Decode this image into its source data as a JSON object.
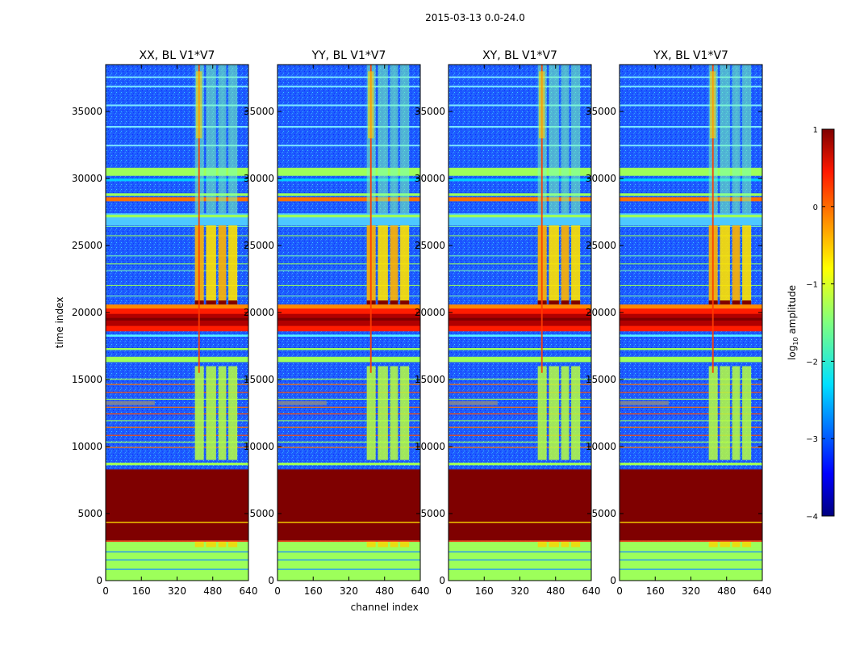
{
  "chart_data": {
    "type": "heatmap",
    "suptitle": "2015-03-13 0.0-24.0",
    "panels": [
      {
        "title": "XX, BL V1*V7",
        "ylabel": "time index"
      },
      {
        "title": "YY, BL V1*V7",
        "xlabel": "channel index"
      },
      {
        "title": "XY, BL V1*V7"
      },
      {
        "title": "YX, BL V1*V7"
      }
    ],
    "xlim": [
      0,
      640
    ],
    "ylim": [
      0,
      38500
    ],
    "xticks": [
      "0",
      "160",
      "320",
      "480",
      "640"
    ],
    "xtick_values": [
      0,
      160,
      320,
      480,
      640
    ],
    "yticks": [
      "0",
      "5000",
      "10000",
      "15000",
      "20000",
      "25000",
      "30000",
      "35000"
    ],
    "ytick_values": [
      0,
      5000,
      10000,
      15000,
      20000,
      25000,
      30000,
      35000
    ],
    "colorbar": {
      "label": "log",
      "label_sub": "10",
      "label_rest": " amplitude",
      "range": [
        -4,
        1
      ],
      "ticks": [
        "1",
        "0",
        "−1",
        "−2",
        "−3",
        "−4"
      ],
      "tick_values": [
        1,
        0,
        -1,
        -2,
        -3,
        -4
      ],
      "colormap": "jet"
    },
    "colors": {
      "deep_blue": "#1e5bff",
      "light_green": "#9dff5a",
      "saturated_red": "#7f0000",
      "orange": "#ff7000"
    }
  }
}
